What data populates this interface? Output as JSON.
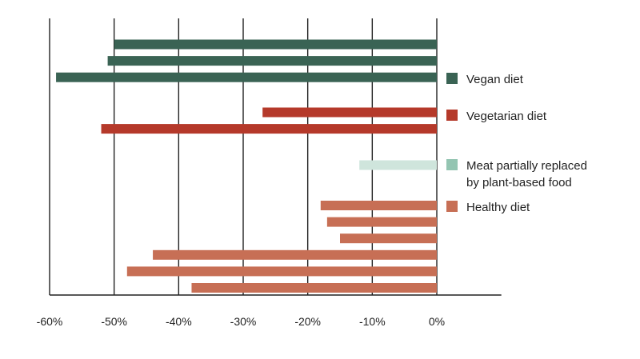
{
  "chart_data": {
    "type": "bar",
    "orientation": "horizontal",
    "xlim": [
      -60,
      10
    ],
    "x_ticks": [
      -60,
      -50,
      -40,
      -30,
      -20,
      -10,
      0
    ],
    "x_tick_labels": [
      "-60%",
      "-50%",
      "-40%",
      "-30%",
      "-20%",
      "-10%",
      "0%"
    ],
    "grid": "vertical",
    "legend_position": "right",
    "series": [
      {
        "name": "Vegan diet",
        "color": "#3a6354",
        "values": [
          -50,
          -51,
          -59
        ]
      },
      {
        "name": "Vegetarian diet",
        "color": "#b5392a",
        "values": [
          -27,
          -52
        ]
      },
      {
        "name": "Meat partially replaced\nby plant-based food",
        "color": "#cfe5dc",
        "legend_color": "#94c5b2",
        "values": [
          -12
        ]
      },
      {
        "name": "Healthy diet",
        "color": "#c76f55",
        "values": [
          -18,
          -17,
          -15,
          -44,
          -48,
          -38
        ]
      }
    ],
    "title": "",
    "xlabel": "",
    "ylabel": ""
  }
}
